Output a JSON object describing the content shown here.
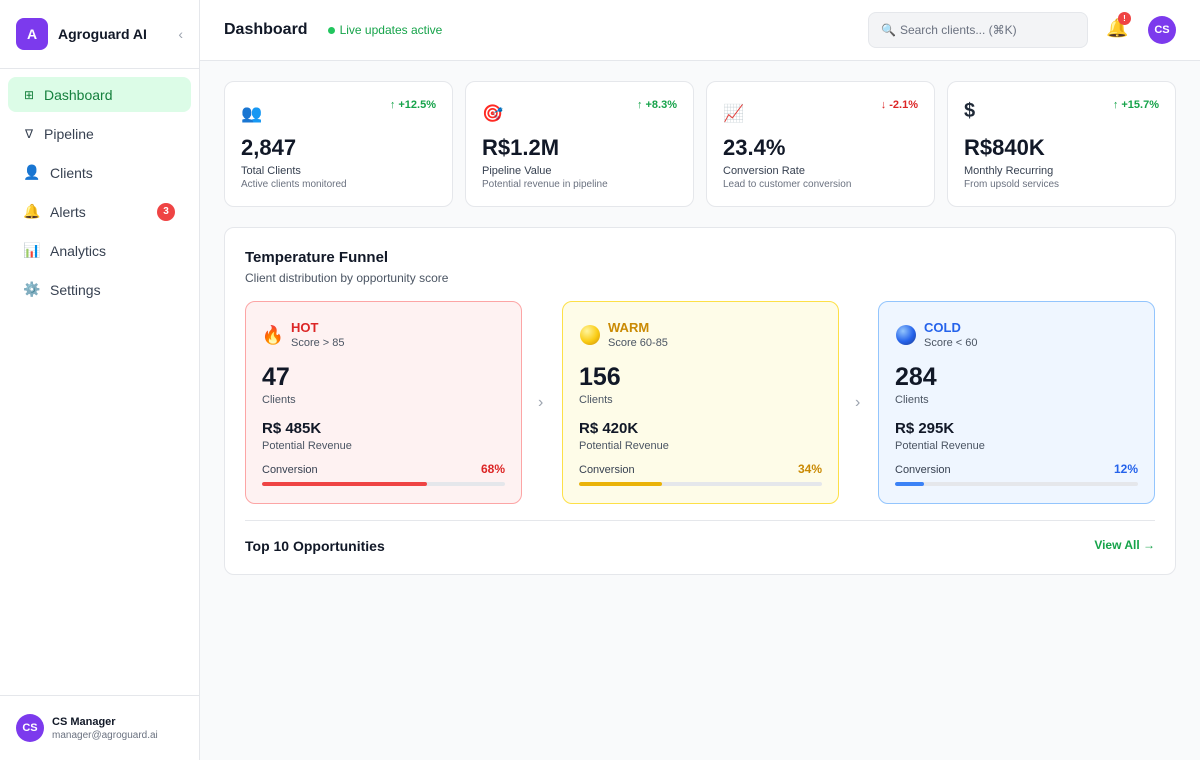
{
  "brand": {
    "logo_letter": "A",
    "name": "Agroguard AI",
    "collapse_glyph": "‹"
  },
  "sidebar": {
    "items": [
      {
        "label": "Dashboard",
        "icon": "⊞",
        "icon_name": "grid-icon"
      },
      {
        "label": "Pipeline",
        "icon": "∇",
        "icon_name": "funnel-icon"
      },
      {
        "label": "Clients",
        "icon": "👤",
        "icon_name": "user-icon"
      },
      {
        "label": "Alerts",
        "icon": "🔔",
        "icon_name": "bell-icon",
        "badge": "3"
      },
      {
        "label": "Analytics",
        "icon": "📊",
        "icon_name": "bar-chart-icon"
      },
      {
        "label": "Settings",
        "icon": "⚙️",
        "icon_name": "gear-icon"
      }
    ],
    "user": {
      "initials": "CS",
      "name": "CS Manager",
      "email": "manager@agroguard.ai"
    }
  },
  "header": {
    "title": "Dashboard",
    "live_text": "Live updates active",
    "search_placeholder": "Search clients... (⌘K)",
    "bell_icon": "🔔",
    "bell_badge": "!",
    "avatar_initials": "CS"
  },
  "stats": [
    {
      "icon": "👥",
      "change": "↑ +12.5%",
      "value": "2,847",
      "label": "Total Clients",
      "sub": "Active clients monitored"
    },
    {
      "icon": "🎯",
      "change": "↑ +8.3%",
      "value": "R$1.2M",
      "label": "Pipeline Value",
      "sub": "Potential revenue in pipeline"
    },
    {
      "icon": "📈",
      "change": "↓ -2.1%",
      "value": "23.4%",
      "label": "Conversion Rate",
      "sub": "Lead to customer conversion"
    },
    {
      "icon": "$",
      "change": "↑ +15.7%",
      "value": "R$840K",
      "label": "Monthly Recurring",
      "sub": "From upsold services"
    }
  ],
  "funnel": {
    "title": "Temperature Funnel",
    "subtitle": "Client distribution by opportunity score",
    "arrow_glyph": "›",
    "tiers": [
      {
        "name": "HOT",
        "icon": "🔥",
        "range": "Score > 85",
        "count": "47",
        "count_label": "Clients",
        "revenue": "R$ 485K",
        "revenue_label": "Potential Revenue",
        "conversion_label": "Conversion",
        "conversion": "68%",
        "conversion_value": 68
      },
      {
        "name": "WARM",
        "range": "Score 60-85",
        "count": "156",
        "count_label": "Clients",
        "revenue": "R$ 420K",
        "revenue_label": "Potential Revenue",
        "conversion_label": "Conversion",
        "conversion": "34%",
        "conversion_value": 34
      },
      {
        "name": "COLD",
        "range": "Score < 60",
        "count": "284",
        "count_label": "Clients",
        "revenue": "R$ 295K",
        "revenue_label": "Potential Revenue",
        "conversion_label": "Conversion",
        "conversion": "12%",
        "conversion_value": 12
      }
    ]
  },
  "opportunities": {
    "title": "Top 10 Opportunities",
    "view_all": "View All →"
  },
  "colors": {
    "accent": "#16a34a",
    "brand": "#7c3aed",
    "hot": "#dc2626",
    "warm": "#ca8a04",
    "cold": "#2563eb"
  }
}
